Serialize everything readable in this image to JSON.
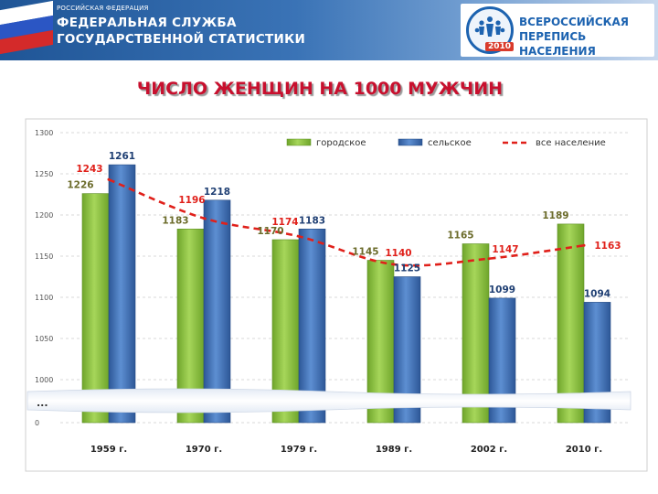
{
  "header": {
    "country": "РОССИЙСКАЯ ФЕДЕРАЦИЯ",
    "agency_line1": "ФЕДЕРАЛЬНАЯ СЛУЖБА",
    "agency_line2": "ГОСУДАРСТВЕННОЙ СТАТИСТИКИ",
    "census_line1": "ВСЕРОССИЙСКАЯ",
    "census_line2": "ПЕРЕПИСЬ НАСЕЛЕНИЯ",
    "census_year": "2010"
  },
  "colors": {
    "urban": "#8cc63f",
    "rural": "#3f6fb5",
    "total": "#e0201a",
    "urban_label": "#6b6b2a",
    "rural_label": "#1f3f73",
    "total_label": "#e0201a"
  },
  "chart_data": {
    "type": "bar",
    "title": "ЧИСЛО ЖЕНЩИН НА 1000 МУЖЧИН",
    "categories": [
      "1959 г.",
      "1970 г.",
      "1979 г.",
      "1989 г.",
      "2002 г.",
      "2010 г."
    ],
    "series": [
      {
        "name": "городское",
        "type": "bar",
        "values": [
          1226,
          1183,
          1170,
          1145,
          1165,
          1189
        ]
      },
      {
        "name": "сельское",
        "type": "bar",
        "values": [
          1261,
          1218,
          1183,
          1125,
          1099,
          1094
        ]
      },
      {
        "name": "все население",
        "type": "line",
        "style": "dashed",
        "values": [
          1243,
          1196,
          1174,
          1140,
          1147,
          1163
        ]
      }
    ],
    "y_ticks": [
      "0",
      "1000",
      "1050",
      "1100",
      "1150",
      "1200",
      "1250",
      "1300"
    ],
    "ylim": [
      1000,
      1300
    ],
    "axis_break": "...",
    "legend_position": "top",
    "grid": true
  }
}
